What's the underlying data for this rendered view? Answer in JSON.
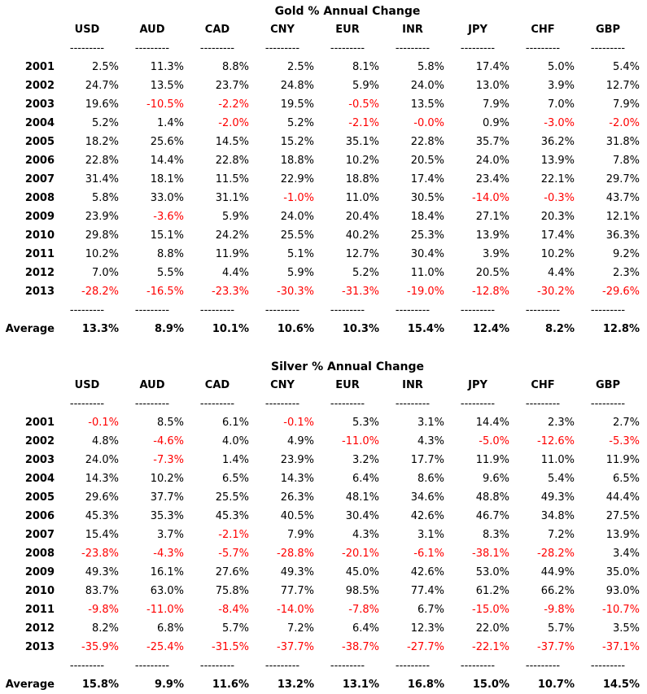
{
  "report": {
    "separator": "---------",
    "colors": {
      "negative": "#ff0000",
      "text": "#000000",
      "background": "#ffffff"
    },
    "tables": [
      {
        "id": "gold",
        "title": "Gold % Annual Change",
        "columns": [
          "USD",
          "AUD",
          "CAD",
          "CNY",
          "EUR",
          "INR",
          "JPY",
          "CHF",
          "GBP"
        ],
        "rows": [
          {
            "label": "2001",
            "values": [
              "2.5%",
              "11.3%",
              "8.8%",
              "2.5%",
              "8.1%",
              "5.8%",
              "17.4%",
              "5.0%",
              "5.4%"
            ]
          },
          {
            "label": "2002",
            "values": [
              "24.7%",
              "13.5%",
              "23.7%",
              "24.8%",
              "5.9%",
              "24.0%",
              "13.0%",
              "3.9%",
              "12.7%"
            ]
          },
          {
            "label": "2003",
            "values": [
              "19.6%",
              "-10.5%",
              "-2.2%",
              "19.5%",
              "-0.5%",
              "13.5%",
              "7.9%",
              "7.0%",
              "7.9%"
            ]
          },
          {
            "label": "2004",
            "values": [
              "5.2%",
              "1.4%",
              "-2.0%",
              "5.2%",
              "-2.1%",
              "-0.0%",
              "0.9%",
              "-3.0%",
              "-2.0%"
            ]
          },
          {
            "label": "2005",
            "values": [
              "18.2%",
              "25.6%",
              "14.5%",
              "15.2%",
              "35.1%",
              "22.8%",
              "35.7%",
              "36.2%",
              "31.8%"
            ]
          },
          {
            "label": "2006",
            "values": [
              "22.8%",
              "14.4%",
              "22.8%",
              "18.8%",
              "10.2%",
              "20.5%",
              "24.0%",
              "13.9%",
              "7.8%"
            ]
          },
          {
            "label": "2007",
            "values": [
              "31.4%",
              "18.1%",
              "11.5%",
              "22.9%",
              "18.8%",
              "17.4%",
              "23.4%",
              "22.1%",
              "29.7%"
            ]
          },
          {
            "label": "2008",
            "values": [
              "5.8%",
              "33.0%",
              "31.1%",
              "-1.0%",
              "11.0%",
              "30.5%",
              "-14.0%",
              "-0.3%",
              "43.7%"
            ]
          },
          {
            "label": "2009",
            "values": [
              "23.9%",
              "-3.6%",
              "5.9%",
              "24.0%",
              "20.4%",
              "18.4%",
              "27.1%",
              "20.3%",
              "12.1%"
            ]
          },
          {
            "label": "2010",
            "values": [
              "29.8%",
              "15.1%",
              "24.2%",
              "25.5%",
              "40.2%",
              "25.3%",
              "13.9%",
              "17.4%",
              "36.3%"
            ]
          },
          {
            "label": "2011",
            "values": [
              "10.2%",
              "8.8%",
              "11.9%",
              "5.1%",
              "12.7%",
              "30.4%",
              "3.9%",
              "10.2%",
              "9.2%"
            ]
          },
          {
            "label": "2012",
            "values": [
              "7.0%",
              "5.5%",
              "4.4%",
              "5.9%",
              "5.2%",
              "11.0%",
              "20.5%",
              "4.4%",
              "2.3%"
            ]
          },
          {
            "label": "2013",
            "values": [
              "-28.2%",
              "-16.5%",
              "-23.3%",
              "-30.3%",
              "-31.3%",
              "-19.0%",
              "-12.8%",
              "-30.2%",
              "-29.6%"
            ]
          }
        ],
        "average": {
          "label": "Average",
          "values": [
            "13.3%",
            "8.9%",
            "10.1%",
            "10.6%",
            "10.3%",
            "15.4%",
            "12.4%",
            "8.2%",
            "12.8%"
          ]
        }
      },
      {
        "id": "silver",
        "title": "Silver % Annual Change",
        "columns": [
          "USD",
          "AUD",
          "CAD",
          "CNY",
          "EUR",
          "INR",
          "JPY",
          "CHF",
          "GBP"
        ],
        "rows": [
          {
            "label": "2001",
            "values": [
              "-0.1%",
              "8.5%",
              "6.1%",
              "-0.1%",
              "5.3%",
              "3.1%",
              "14.4%",
              "2.3%",
              "2.7%"
            ]
          },
          {
            "label": "2002",
            "values": [
              "4.8%",
              "-4.6%",
              "4.0%",
              "4.9%",
              "-11.0%",
              "4.3%",
              "-5.0%",
              "-12.6%",
              "-5.3%"
            ]
          },
          {
            "label": "2003",
            "values": [
              "24.0%",
              "-7.3%",
              "1.4%",
              "23.9%",
              "3.2%",
              "17.7%",
              "11.9%",
              "11.0%",
              "11.9%"
            ]
          },
          {
            "label": "2004",
            "values": [
              "14.3%",
              "10.2%",
              "6.5%",
              "14.3%",
              "6.4%",
              "8.6%",
              "9.6%",
              "5.4%",
              "6.5%"
            ]
          },
          {
            "label": "2005",
            "values": [
              "29.6%",
              "37.7%",
              "25.5%",
              "26.3%",
              "48.1%",
              "34.6%",
              "48.8%",
              "49.3%",
              "44.4%"
            ]
          },
          {
            "label": "2006",
            "values": [
              "45.3%",
              "35.3%",
              "45.3%",
              "40.5%",
              "30.4%",
              "42.6%",
              "46.7%",
              "34.8%",
              "27.5%"
            ]
          },
          {
            "label": "2007",
            "values": [
              "15.4%",
              "3.7%",
              "-2.1%",
              "7.9%",
              "4.3%",
              "3.1%",
              "8.3%",
              "7.2%",
              "13.9%"
            ]
          },
          {
            "label": "2008",
            "values": [
              "-23.8%",
              "-4.3%",
              "-5.7%",
              "-28.8%",
              "-20.1%",
              "-6.1%",
              "-38.1%",
              "-28.2%",
              "3.4%"
            ]
          },
          {
            "label": "2009",
            "values": [
              "49.3%",
              "16.1%",
              "27.6%",
              "49.3%",
              "45.0%",
              "42.6%",
              "53.0%",
              "44.9%",
              "35.0%"
            ]
          },
          {
            "label": "2010",
            "values": [
              "83.7%",
              "63.0%",
              "75.8%",
              "77.7%",
              "98.5%",
              "77.4%",
              "61.2%",
              "66.2%",
              "93.0%"
            ]
          },
          {
            "label": "2011",
            "values": [
              "-9.8%",
              "-11.0%",
              "-8.4%",
              "-14.0%",
              "-7.8%",
              "6.7%",
              "-15.0%",
              "-9.8%",
              "-10.7%"
            ]
          },
          {
            "label": "2012",
            "values": [
              "8.2%",
              "6.8%",
              "5.7%",
              "7.2%",
              "6.4%",
              "12.3%",
              "22.0%",
              "5.7%",
              "3.5%"
            ]
          },
          {
            "label": "2013",
            "values": [
              "-35.9%",
              "-25.4%",
              "-31.5%",
              "-37.7%",
              "-38.7%",
              "-27.7%",
              "-22.1%",
              "-37.7%",
              "-37.1%"
            ]
          }
        ],
        "average": {
          "label": "Average",
          "values": [
            "15.8%",
            "9.9%",
            "11.6%",
            "13.2%",
            "13.1%",
            "16.8%",
            "15.0%",
            "10.7%",
            "14.5%"
          ]
        }
      }
    ]
  }
}
